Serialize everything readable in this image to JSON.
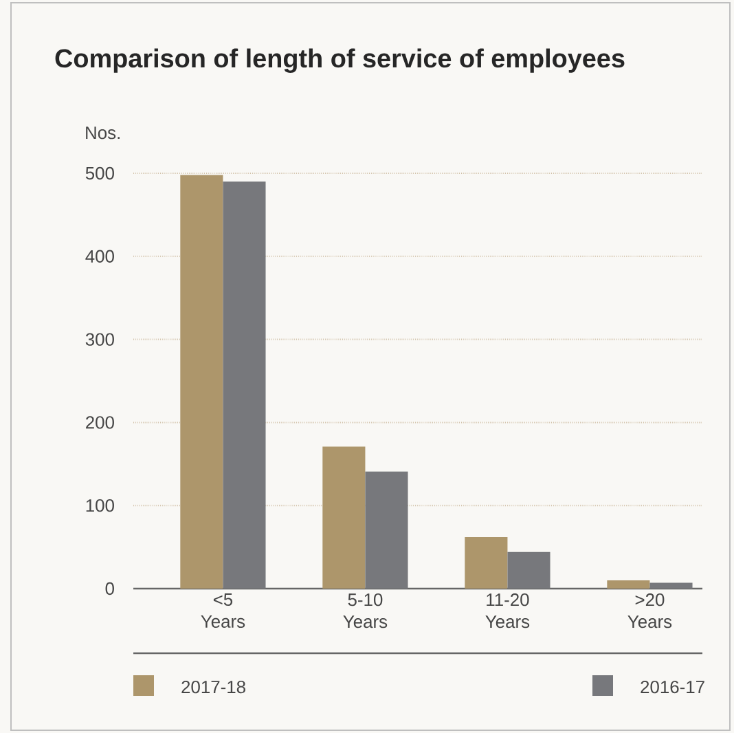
{
  "chart_data": {
    "type": "bar",
    "title": "Comparison of length of service of employees",
    "ylabel": "Nos.",
    "categories": [
      "<5 Years",
      "5-10 Years",
      "11-20 Years",
      ">20 Years"
    ],
    "series": [
      {
        "name": "2017-18",
        "color": "#ad966b",
        "values": [
          498,
          171,
          62,
          10
        ]
      },
      {
        "name": "2016-17",
        "color": "#77787c",
        "values": [
          490,
          141,
          44,
          7
        ]
      }
    ],
    "ylim": [
      0,
      500
    ],
    "yticks": [
      0,
      100,
      200,
      300,
      400,
      500
    ],
    "grid": "y",
    "legend": "bottom"
  }
}
